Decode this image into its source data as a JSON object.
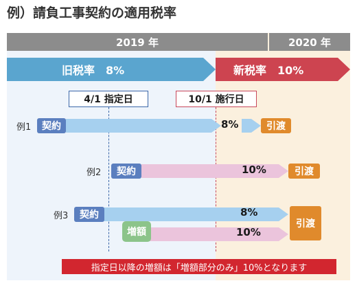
{
  "title": "例）請負工事契約の適用税率",
  "years": {
    "y2019": "2019 年",
    "y2020": "2020 年"
  },
  "rates": {
    "old": "旧税率　8%",
    "new": "新税率　10%"
  },
  "dates": {
    "designated": "4/1 指定日",
    "effective": "10/1 施行日"
  },
  "examples": [
    {
      "label": "例1",
      "contract": "契約",
      "rate": "8%",
      "delivery": "引渡"
    },
    {
      "label": "例2",
      "contract": "契約",
      "rate": "10%",
      "delivery": "引渡"
    },
    {
      "label": "例3",
      "contract": "契約",
      "increase": "増額",
      "rate_a": "8%",
      "rate_b": "10%",
      "delivery": "引渡"
    }
  ],
  "note": "指定日以降の増額は「増額部分のみ」10%となります",
  "colors": {
    "old_rate": "#5aa5cf",
    "new_rate": "#cd4450",
    "note_bg": "#d2262f",
    "header": "#8c8c8c"
  }
}
